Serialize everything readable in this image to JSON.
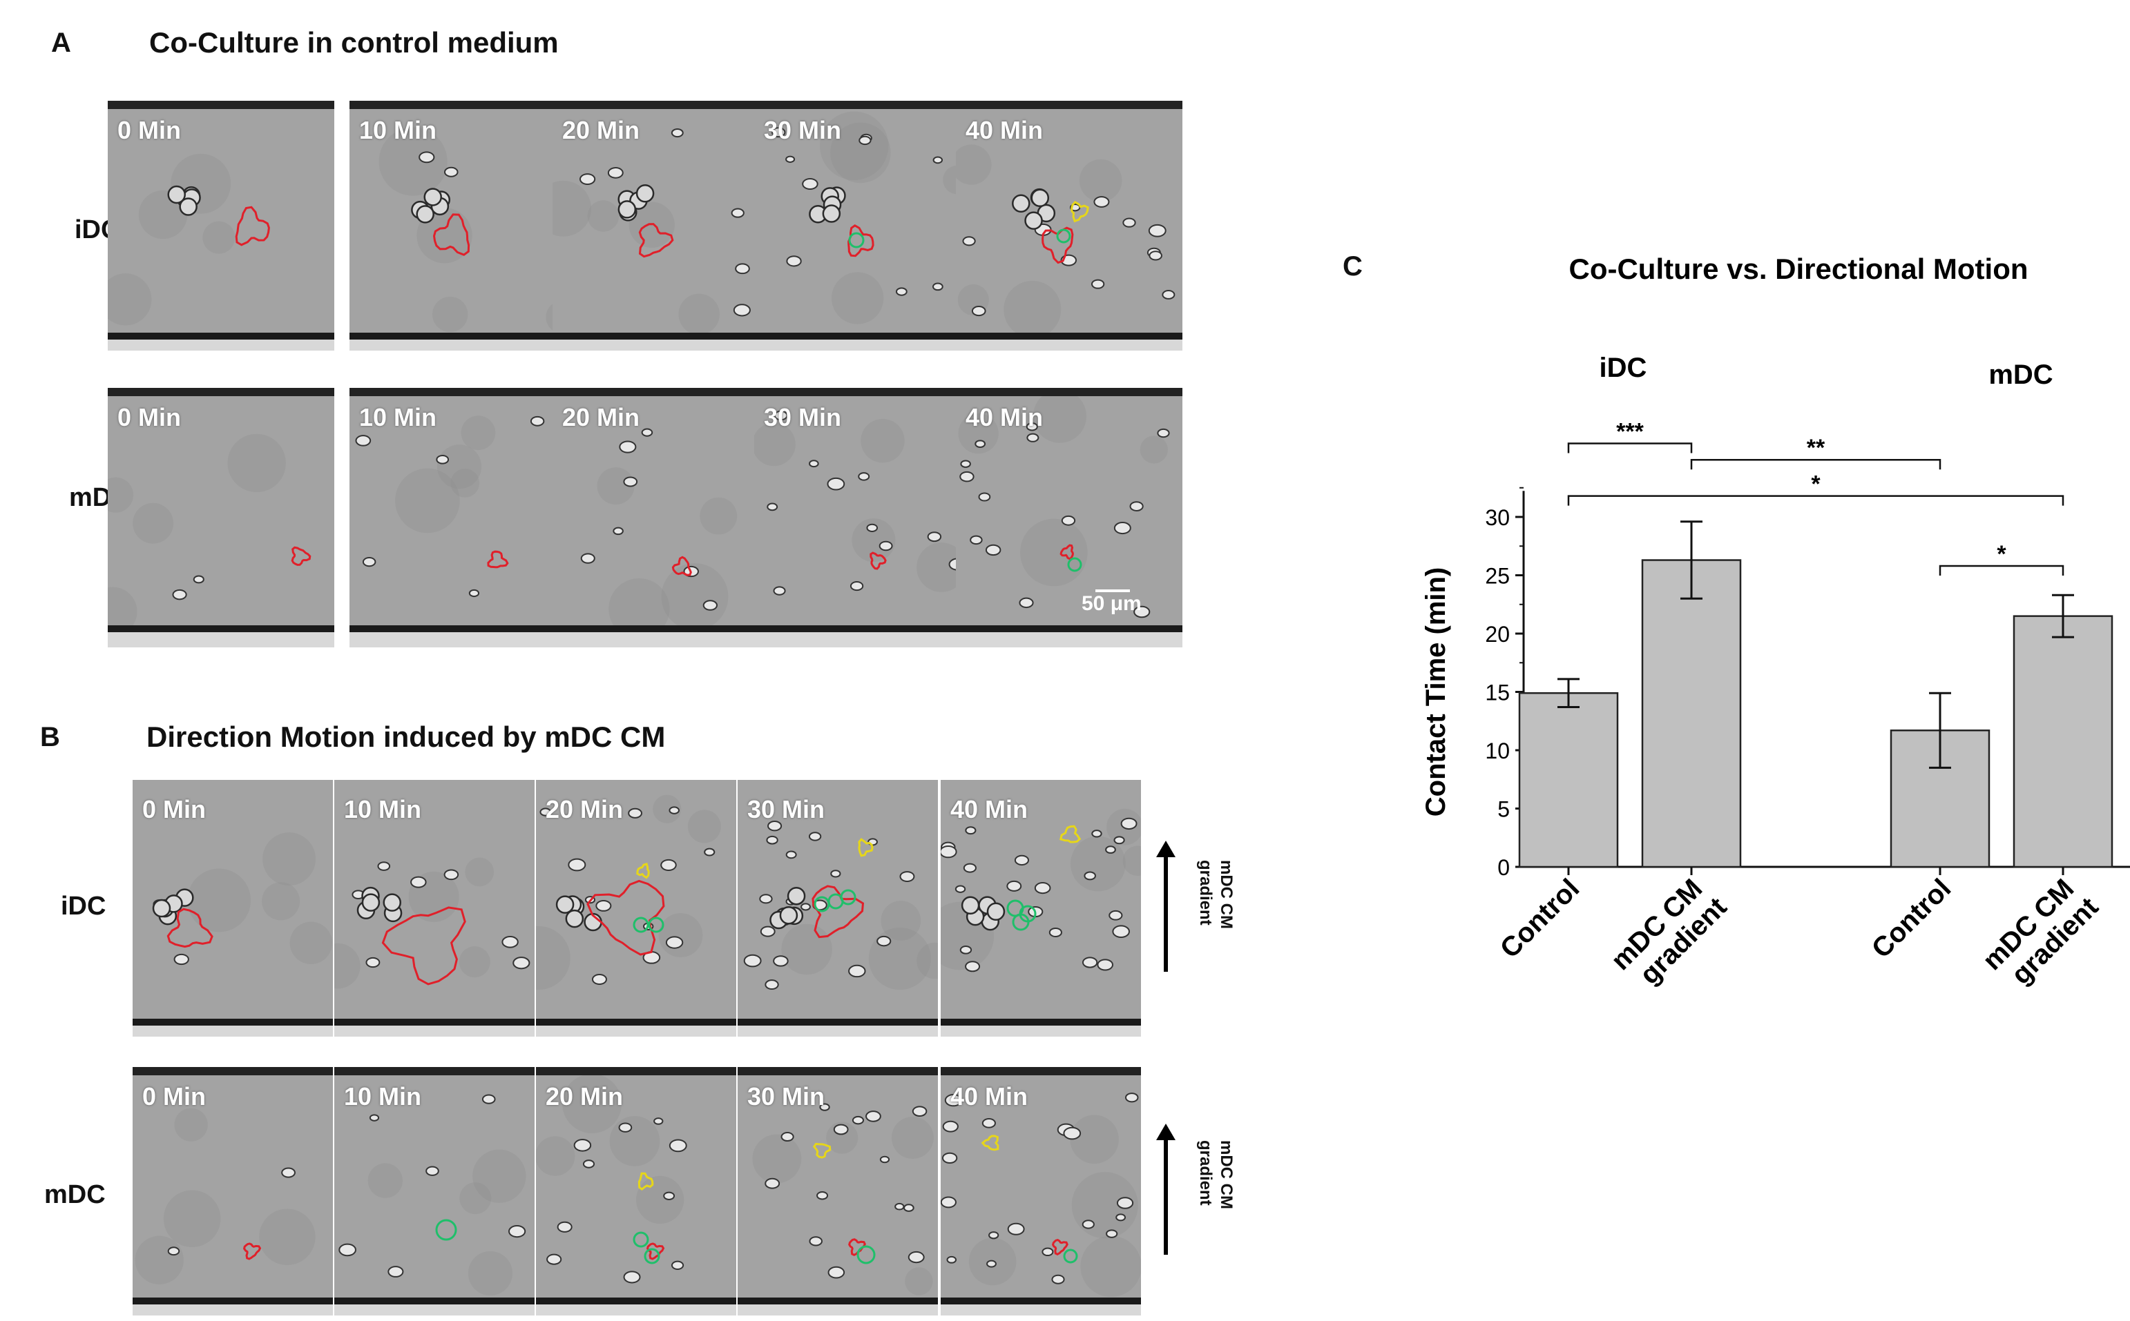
{
  "panel_a": {
    "letter": "A",
    "title": "Co-Culture in control medium",
    "row_labels": [
      "iDC",
      "mDC"
    ],
    "time_labels": [
      "0 Min",
      "10 Min",
      "20 Min",
      "30 Min",
      "40 Min"
    ],
    "scale_bar": "50 μm"
  },
  "panel_b": {
    "letter": "B",
    "title": "Direction Motion induced by mDC CM",
    "row_labels": [
      "iDC",
      "mDC"
    ],
    "time_labels": [
      "0 Min",
      "10 Min",
      "20 Min",
      "30 Min",
      "40 Min"
    ],
    "gradient_label_line1": "mDC CM",
    "gradient_label_line2": "gradient"
  },
  "panel_c": {
    "letter": "C"
  },
  "colors": {
    "bar_fill": "#c0c0c0",
    "contour_red": "#e0202a",
    "contour_green": "#1fbf6a",
    "contour_yellow": "#e6d61a"
  },
  "chart_data": {
    "type": "bar",
    "title": "Co-Culture vs. Directional Motion",
    "group_labels": [
      "iDC",
      "mDC"
    ],
    "categories": [
      "Control",
      "mDC CM gradient",
      "Control",
      "mDC CM gradient"
    ],
    "values": [
      14.9,
      26.3,
      11.7,
      21.5
    ],
    "errors": [
      1.2,
      3.3,
      3.2,
      1.8
    ],
    "ylabel": "Contact Time (min)",
    "xlabel": "",
    "ylim": [
      0,
      32
    ],
    "yticks": [
      0,
      5,
      10,
      15,
      20,
      25,
      30
    ],
    "grid": false,
    "significance": [
      {
        "from": 0,
        "to": 1,
        "label": "***"
      },
      {
        "from": 1,
        "to": 2,
        "label": "**"
      },
      {
        "from": 0,
        "to": 3,
        "label": "*"
      },
      {
        "from": 2,
        "to": 3,
        "label": "*"
      }
    ]
  }
}
